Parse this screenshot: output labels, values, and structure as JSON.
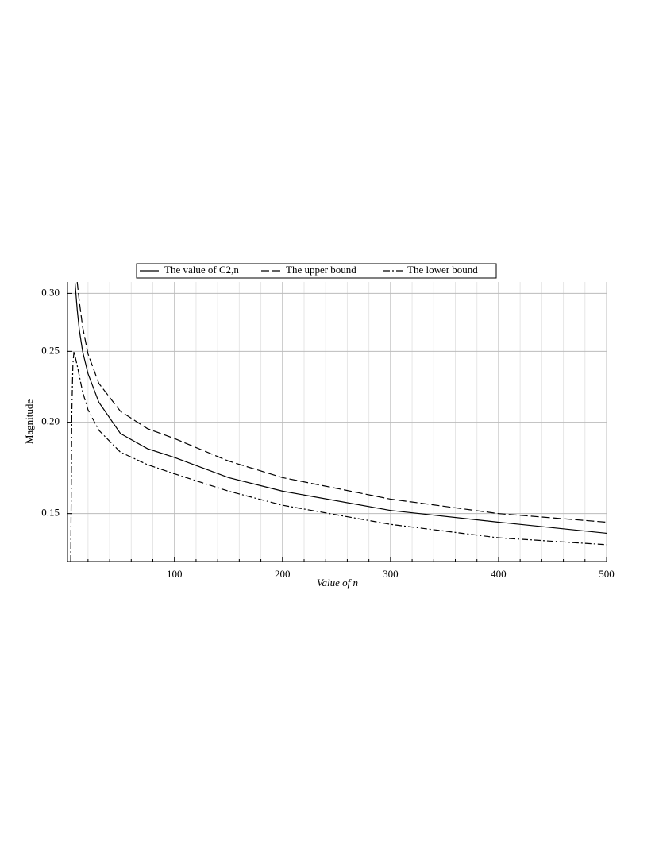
{
  "chart_data": {
    "type": "line",
    "xlabel": "Value of n",
    "ylabel": "Magnitude",
    "xlim": [
      1,
      500
    ],
    "ylim": [
      0.129,
      0.311
    ],
    "ylog": true,
    "xticks": [
      100,
      200,
      300,
      400,
      500
    ],
    "xminorticks": [
      20,
      40,
      60,
      80,
      120,
      140,
      160,
      180,
      220,
      240,
      260,
      280,
      320,
      340,
      360,
      380,
      420,
      440,
      460,
      480
    ],
    "yticks": [
      {
        "value": 0.15,
        "label": "0.15"
      },
      {
        "value": 0.2,
        "label": "0.20"
      },
      {
        "value": 0.25,
        "label": "0.25"
      },
      {
        "value": 0.3,
        "label": "0.30"
      }
    ],
    "grid": true,
    "legend": "top",
    "series": [
      {
        "name": "The value of C2,n",
        "color": "#000000",
        "dash": "solid",
        "x": [
          8,
          10,
          12,
          15,
          20,
          30,
          50,
          75,
          100,
          150,
          200,
          300,
          400,
          500
        ],
        "values": [
          0.31,
          0.285,
          0.267,
          0.25,
          0.233,
          0.213,
          0.193,
          0.184,
          0.179,
          0.168,
          0.161,
          0.1515,
          0.146,
          0.141
        ]
      },
      {
        "name": "The upper bound",
        "color": "#000000",
        "dash": "dashed",
        "x": [
          10,
          12,
          15,
          20,
          30,
          50,
          75,
          100,
          150,
          200,
          300,
          400,
          500
        ],
        "values": [
          0.311,
          0.292,
          0.27,
          0.248,
          0.226,
          0.207,
          0.196,
          0.19,
          0.177,
          0.168,
          0.157,
          0.15,
          0.146
        ]
      },
      {
        "name": "The lower bound",
        "color": "#000000",
        "dash": "dashdot",
        "x": [
          4,
          5,
          6,
          7,
          10,
          15,
          20,
          30,
          50,
          75,
          100,
          150,
          200,
          300,
          400,
          500
        ],
        "values": [
          0.129,
          0.206,
          0.24,
          0.25,
          0.239,
          0.22,
          0.208,
          0.195,
          0.182,
          0.175,
          0.17,
          0.161,
          0.154,
          0.145,
          0.139,
          0.136
        ]
      }
    ]
  }
}
